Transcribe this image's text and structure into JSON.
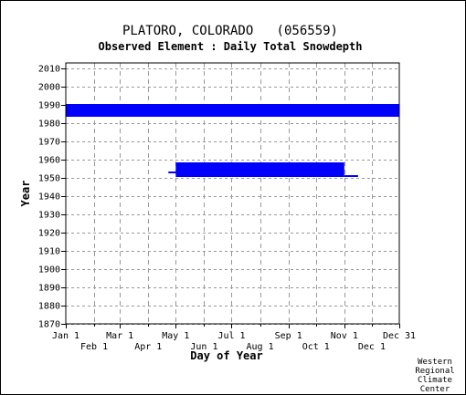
{
  "chart_data": {
    "type": "scatter",
    "title": "PLATORO, COLORADO   (056559)",
    "subtitle": "Observed Element : Daily Total Snowdepth",
    "xlabel": "Day of Year",
    "ylabel": "Year",
    "x_ticks_upper": [
      "Jan 1",
      "Mar 1",
      "May 1",
      "Jul 1",
      "Sep 1",
      "Nov 1",
      "Dec 31"
    ],
    "x_ticks_lower": [
      "Feb 1",
      "Apr 1",
      "Jun 1",
      "Aug 1",
      "Oct 1",
      "Dec 1"
    ],
    "y_ticks": [
      "2010",
      "2000",
      "1990",
      "1980",
      "1970",
      "1960",
      "1950",
      "1940",
      "1930",
      "1920",
      "1910",
      "1900",
      "1890",
      "1880",
      "1870"
    ],
    "xlim": [
      1,
      365
    ],
    "ylim": [
      1870,
      2011
    ],
    "grid": true,
    "series": [
      {
        "color": "#0000ff",
        "records": [
          {
            "year_from": 1984,
            "year_to": 1990,
            "day_from": 1,
            "day_to": 365
          },
          {
            "year_from": 1951,
            "year_to": 1958,
            "day_from": 121,
            "day_to": 305
          },
          {
            "year_from": 1953,
            "year_to": 1953,
            "day_from": 113,
            "day_to": 121
          },
          {
            "year_from": 1951,
            "year_to": 1951,
            "day_from": 305,
            "day_to": 320
          }
        ]
      }
    ]
  },
  "credit": [
    "Western",
    "Regional",
    "Climate",
    "Center"
  ]
}
